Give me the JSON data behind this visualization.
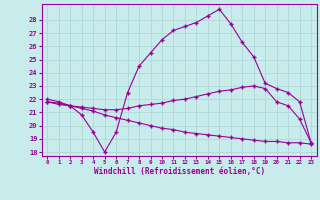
{
  "background_color": "#c8ecec",
  "grid_color": "#b0d8d8",
  "line_color": "#990099",
  "xlabel": "Windchill (Refroidissement éolien,°C)",
  "xlim": [
    -0.5,
    23.5
  ],
  "ylim": [
    17.7,
    29.2
  ],
  "yticks": [
    18,
    19,
    20,
    21,
    22,
    23,
    24,
    25,
    26,
    27,
    28
  ],
  "xticks": [
    0,
    1,
    2,
    3,
    4,
    5,
    6,
    7,
    8,
    9,
    10,
    11,
    12,
    13,
    14,
    15,
    16,
    17,
    18,
    19,
    20,
    21,
    22,
    23
  ],
  "series": [
    {
      "x": [
        0,
        1,
        2,
        3,
        4,
        5,
        6,
        7,
        8,
        9,
        10,
        11,
        12,
        13,
        14,
        15,
        16,
        17,
        18,
        19,
        20,
        21,
        22,
        23
      ],
      "y": [
        22.0,
        21.8,
        21.5,
        20.8,
        19.5,
        18.0,
        19.5,
        22.5,
        24.5,
        25.5,
        26.5,
        27.2,
        27.5,
        27.8,
        28.3,
        28.8,
        27.7,
        26.3,
        25.2,
        23.2,
        22.8,
        22.5,
        21.8,
        18.7
      ]
    },
    {
      "x": [
        0,
        1,
        2,
        3,
        4,
        5,
        6,
        7,
        8,
        9,
        10,
        11,
        12,
        13,
        14,
        15,
        16,
        17,
        18,
        19,
        20,
        21,
        22,
        23
      ],
      "y": [
        21.8,
        21.7,
        21.5,
        21.4,
        21.3,
        21.2,
        21.2,
        21.3,
        21.5,
        21.6,
        21.7,
        21.9,
        22.0,
        22.2,
        22.4,
        22.6,
        22.7,
        22.9,
        23.0,
        22.8,
        21.8,
        21.5,
        20.5,
        18.7
      ]
    },
    {
      "x": [
        0,
        1,
        2,
        3,
        4,
        5,
        6,
        7,
        8,
        9,
        10,
        11,
        12,
        13,
        14,
        15,
        16,
        17,
        18,
        19,
        20,
        21,
        22,
        23
      ],
      "y": [
        21.8,
        21.6,
        21.5,
        21.3,
        21.1,
        20.8,
        20.6,
        20.4,
        20.2,
        20.0,
        19.8,
        19.7,
        19.5,
        19.4,
        19.3,
        19.2,
        19.1,
        19.0,
        18.9,
        18.8,
        18.8,
        18.7,
        18.7,
        18.6
      ]
    }
  ]
}
